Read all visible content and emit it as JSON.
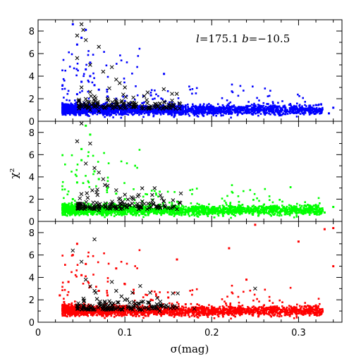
{
  "chart_data": [
    {
      "type": "scatter",
      "panel": "top",
      "color": "#0000ff",
      "annotation": "l=175.1  b=−10.5",
      "annotation_parts": {
        "l": "l",
        "l_val": "=175.1 ",
        "b": "b",
        "b_val": "=−10.5"
      },
      "xlim": [
        0,
        0.35
      ],
      "ylim": [
        0,
        9
      ],
      "x_ticks": [
        0,
        0.1,
        0.2,
        0.3
      ],
      "y_ticks": [
        0,
        2,
        4,
        6,
        8
      ],
      "y_tick_labels": [
        "0",
        "2",
        "4",
        "6",
        "8"
      ],
      "series": [
        {
          "kind": "dots",
          "color": "#0000ff",
          "description_points": "dense band chi2 0.5-1.8 for sigma 0.03-0.25; tail to 0.34; outliers up to 9 near sigma 0.04-0.06",
          "points": [
            [
              0.035,
              1.2
            ],
            [
              0.04,
              0.9
            ],
            [
              0.045,
              2.4
            ],
            [
              0.05,
              3.5
            ],
            [
              0.055,
              4.6
            ],
            [
              0.06,
              5.2
            ],
            [
              0.045,
              6.8
            ],
            [
              0.05,
              7.4
            ],
            [
              0.055,
              8.1
            ],
            [
              0.04,
              8.6
            ],
            [
              0.06,
              4.0
            ],
            [
              0.065,
              3.2
            ],
            [
              0.07,
              2.8
            ],
            [
              0.08,
              2.2
            ],
            [
              0.09,
              2.0
            ],
            [
              0.1,
              1.8
            ],
            [
              0.12,
              1.6
            ],
            [
              0.15,
              1.5
            ],
            [
              0.145,
              4.2
            ],
            [
              0.13,
              2.3
            ],
            [
              0.17,
              1.4
            ],
            [
              0.2,
              1.2
            ],
            [
              0.22,
              1.1
            ],
            [
              0.25,
              1.0
            ],
            [
              0.28,
              0.9
            ],
            [
              0.3,
              0.8
            ],
            [
              0.32,
              1.0
            ],
            [
              0.34,
              1.2
            ],
            [
              0.335,
              0.7
            ],
            [
              0.31,
              1.1
            ]
          ]
        },
        {
          "kind": "crosses",
          "color": "#000000",
          "points": [
            [
              0.05,
              8.6
            ],
            [
              0.052,
              8.1
            ],
            [
              0.045,
              7.6
            ],
            [
              0.055,
              7.2
            ],
            [
              0.07,
              6.6
            ],
            [
              0.045,
              5.6
            ],
            [
              0.06,
              5.0
            ],
            [
              0.075,
              4.4
            ],
            [
              0.085,
              4.8
            ],
            [
              0.09,
              3.7
            ],
            [
              0.1,
              3.0
            ],
            [
              0.05,
              3.0
            ],
            [
              0.06,
              2.6
            ],
            [
              0.065,
              2.2
            ],
            [
              0.08,
              2.0
            ],
            [
              0.09,
              1.8
            ],
            [
              0.11,
              1.5
            ],
            [
              0.13,
              1.2
            ],
            [
              0.06,
              1.0
            ],
            [
              0.07,
              0.9
            ]
          ]
        }
      ]
    },
    {
      "type": "scatter",
      "panel": "middle",
      "color": "#00ff00",
      "ylabel": "χ²",
      "xlim": [
        0,
        0.35
      ],
      "ylim": [
        0,
        9
      ],
      "x_ticks": [
        0,
        0.1,
        0.2,
        0.3
      ],
      "y_ticks": [
        0,
        2,
        4,
        6,
        8
      ],
      "y_tick_labels": [
        "0",
        "2",
        "4",
        "6",
        "8"
      ],
      "series": [
        {
          "kind": "dots",
          "color": "#00ff00",
          "points": [
            [
              0.035,
              1.0
            ],
            [
              0.04,
              2.0
            ],
            [
              0.045,
              3.5
            ],
            [
              0.05,
              5.5
            ],
            [
              0.055,
              8.6
            ],
            [
              0.06,
              7.8
            ],
            [
              0.05,
              6.5
            ],
            [
              0.065,
              4.5
            ],
            [
              0.07,
              3.8
            ],
            [
              0.08,
              3.0
            ],
            [
              0.09,
              2.5
            ],
            [
              0.1,
              2.0
            ],
            [
              0.12,
              1.8
            ],
            [
              0.14,
              1.5
            ],
            [
              0.16,
              1.3
            ],
            [
              0.18,
              1.2
            ],
            [
              0.2,
              1.1
            ],
            [
              0.22,
              1.0
            ],
            [
              0.25,
              0.9
            ],
            [
              0.28,
              0.9
            ],
            [
              0.3,
              1.0
            ],
            [
              0.33,
              0.8
            ],
            [
              0.34,
              1.3
            ]
          ]
        },
        {
          "kind": "crosses",
          "color": "#000000",
          "points": [
            [
              0.045,
              7.2
            ],
            [
              0.05,
              8.8
            ],
            [
              0.06,
              7.0
            ],
            [
              0.055,
              5.2
            ],
            [
              0.065,
              4.8
            ],
            [
              0.07,
              4.4
            ],
            [
              0.075,
              3.8
            ],
            [
              0.08,
              3.2
            ],
            [
              0.09,
              2.8
            ],
            [
              0.1,
              2.4
            ],
            [
              0.11,
              2.0
            ],
            [
              0.12,
              1.8
            ],
            [
              0.13,
              1.6
            ],
            [
              0.14,
              1.4
            ],
            [
              0.06,
              1.2
            ],
            [
              0.07,
              1.0
            ],
            [
              0.15,
              1.2
            ],
            [
              0.16,
              1.1
            ]
          ]
        }
      ]
    },
    {
      "type": "scatter",
      "panel": "bottom",
      "color": "#ff0000",
      "xlabel": "σ(mag)",
      "xlim": [
        0,
        0.35
      ],
      "ylim": [
        0,
        9
      ],
      "x_ticks": [
        0,
        0.1,
        0.2,
        0.3
      ],
      "x_tick_labels": [
        "0",
        "0.1",
        "0.2",
        "0.3"
      ],
      "y_ticks": [
        0,
        2,
        4,
        6,
        8
      ],
      "y_tick_labels": [
        "0",
        "2",
        "4",
        "6",
        "8"
      ],
      "series": [
        {
          "kind": "dots",
          "color": "#ff0000",
          "points": [
            [
              0.025,
              2.4
            ],
            [
              0.03,
              1.8
            ],
            [
              0.035,
              3.6
            ],
            [
              0.04,
              6.0
            ],
            [
              0.045,
              7.0
            ],
            [
              0.05,
              4.2
            ],
            [
              0.055,
              5.2
            ],
            [
              0.06,
              3.2
            ],
            [
              0.07,
              2.8
            ],
            [
              0.08,
              2.4
            ],
            [
              0.09,
              4.8
            ],
            [
              0.1,
              3.4
            ],
            [
              0.11,
              2.6
            ],
            [
              0.13,
              2.0
            ],
            [
              0.15,
              2.2
            ],
            [
              0.16,
              5.6
            ],
            [
              0.17,
              1.6
            ],
            [
              0.2,
              1.4
            ],
            [
              0.22,
              6.6
            ],
            [
              0.24,
              3.8
            ],
            [
              0.26,
              1.2
            ],
            [
              0.28,
              1.1
            ],
            [
              0.3,
              1.0
            ],
            [
              0.32,
              1.5
            ],
            [
              0.33,
              8.3
            ],
            [
              0.34,
              8.4
            ],
            [
              0.25,
              8.7
            ],
            [
              0.3,
              7.2
            ],
            [
              0.34,
              5.0
            ]
          ]
        },
        {
          "kind": "crosses",
          "color": "#000000",
          "points": [
            [
              0.04,
              6.4
            ],
            [
              0.065,
              7.4
            ],
            [
              0.05,
              5.4
            ],
            [
              0.055,
              3.8
            ],
            [
              0.06,
              3.2
            ],
            [
              0.065,
              2.8
            ],
            [
              0.085,
              3.6
            ],
            [
              0.09,
              2.8
            ],
            [
              0.1,
              2.0
            ],
            [
              0.11,
              1.8
            ],
            [
              0.13,
              1.4
            ],
            [
              0.16,
              1.3
            ],
            [
              0.18,
              1.2
            ],
            [
              0.25,
              3.0
            ],
            [
              0.07,
              1.6
            ],
            [
              0.08,
              1.2
            ],
            [
              0.12,
              1.1
            ],
            [
              0.14,
              1.0
            ]
          ]
        }
      ]
    }
  ]
}
